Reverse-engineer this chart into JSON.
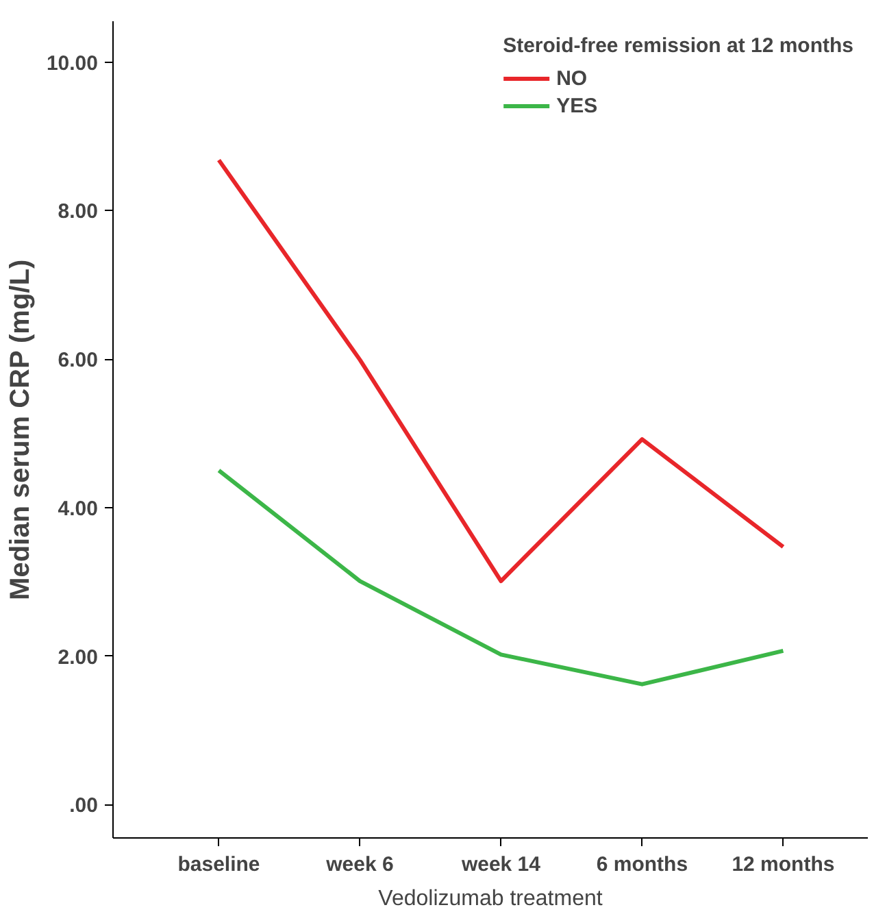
{
  "chart_data": {
    "type": "line",
    "xlabel": "Vedolizumab treatment",
    "ylabel": "Median serum CRP (mg/L)",
    "legend_title": "Steroid-free remission at 12 months",
    "legend": "top right",
    "grid": false,
    "categories": [
      "baseline",
      "week 6",
      "week 14",
      "6 months",
      "12 months"
    ],
    "ylim": [
      -0.45,
      10.55
    ],
    "yticks": [
      {
        "value": 0,
        "label": ".00"
      },
      {
        "value": 2,
        "label": "2.00"
      },
      {
        "value": 4,
        "label": "4.00"
      },
      {
        "value": 6,
        "label": "6.00"
      },
      {
        "value": 8,
        "label": "8.00"
      },
      {
        "value": 10,
        "label": "10.00"
      }
    ],
    "series": [
      {
        "name": "NO",
        "color": "#e8262a",
        "values": [
          8.68,
          5.99,
          3.01,
          4.92,
          3.47
        ]
      },
      {
        "name": "YES",
        "color": "#3cb648",
        "values": [
          4.5,
          3.01,
          2.02,
          1.62,
          2.07
        ]
      }
    ]
  }
}
